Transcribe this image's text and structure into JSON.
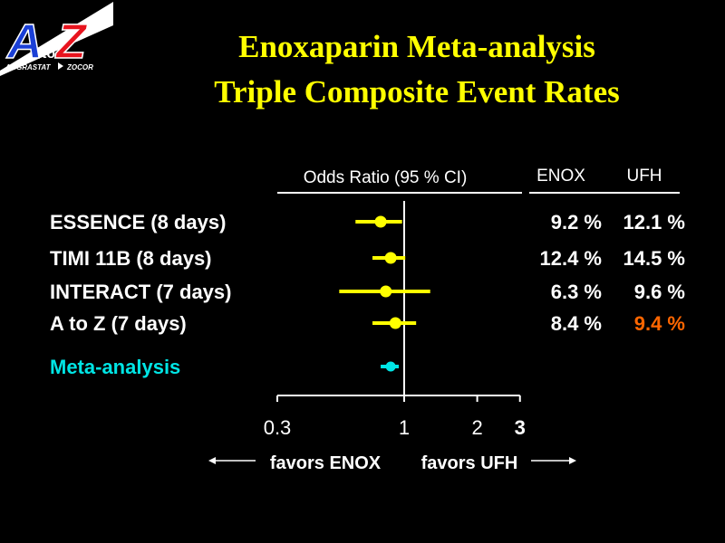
{
  "logo": {
    "letter_a": "A",
    "letter_to": "to",
    "letter_z": "Z",
    "left_text": "AGGRASTAT",
    "right_text": "ZOCOR"
  },
  "title": {
    "line1": "Enoxaparin Meta-analysis",
    "line2": "Triple Composite Event Rates"
  },
  "colors": {
    "background": "#000000",
    "title": "#ffff00",
    "trial": "#ffff00",
    "meta": "#00e5e5",
    "highlight": "#ff6600",
    "text": "#ffffff"
  },
  "chart_data": {
    "type": "forest",
    "title": "Enoxaparin Meta-analysis Triple Composite Event Rates",
    "axis_label": "Odds Ratio (95 % CI)",
    "scale": "log",
    "xlim": [
      0.3,
      3
    ],
    "ticks": [
      {
        "value": 0.3,
        "label": "0.3",
        "bold": false
      },
      {
        "value": 1,
        "label": "1",
        "bold": false
      },
      {
        "value": 2,
        "label": "2",
        "bold": false
      },
      {
        "value": 3,
        "label": "3",
        "bold": true
      }
    ],
    "reference_line": 1,
    "favors_left": "favors ENOX",
    "favors_right": "favors UFH",
    "columns": [
      "ENOX",
      "UFH"
    ],
    "rows": [
      {
        "label": "ESSENCE  (8 days)",
        "or": 0.8,
        "lo": 0.63,
        "hi": 0.98,
        "enox": "9.2 %",
        "ufh": "12.1 %",
        "color": "#ffff00",
        "ufh_color": "#ffffff"
      },
      {
        "label": "TIMI 11B     (8 days)",
        "or": 0.88,
        "lo": 0.74,
        "hi": 1.01,
        "enox": "12.4 %",
        "ufh": "14.5 %",
        "color": "#ffff00",
        "ufh_color": "#ffffff"
      },
      {
        "label": "INTERACT (7 days)",
        "or": 0.84,
        "lo": 0.54,
        "hi": 1.28,
        "enox": "6.3 %",
        "ufh": "9.6 %",
        "color": "#ffff00",
        "ufh_color": "#ffffff"
      },
      {
        "label": "A to Z (7 days)",
        "or": 0.92,
        "lo": 0.74,
        "hi": 1.12,
        "enox": "8.4 %",
        "ufh": "9.4 %",
        "color": "#ffff00",
        "ufh_color": "#ff6600"
      },
      {
        "label": "Meta-analysis",
        "or": 0.88,
        "lo": 0.8,
        "hi": 0.95,
        "enox": "",
        "ufh": "",
        "color": "#00e5e5",
        "ufh_color": "#ffffff"
      }
    ]
  }
}
